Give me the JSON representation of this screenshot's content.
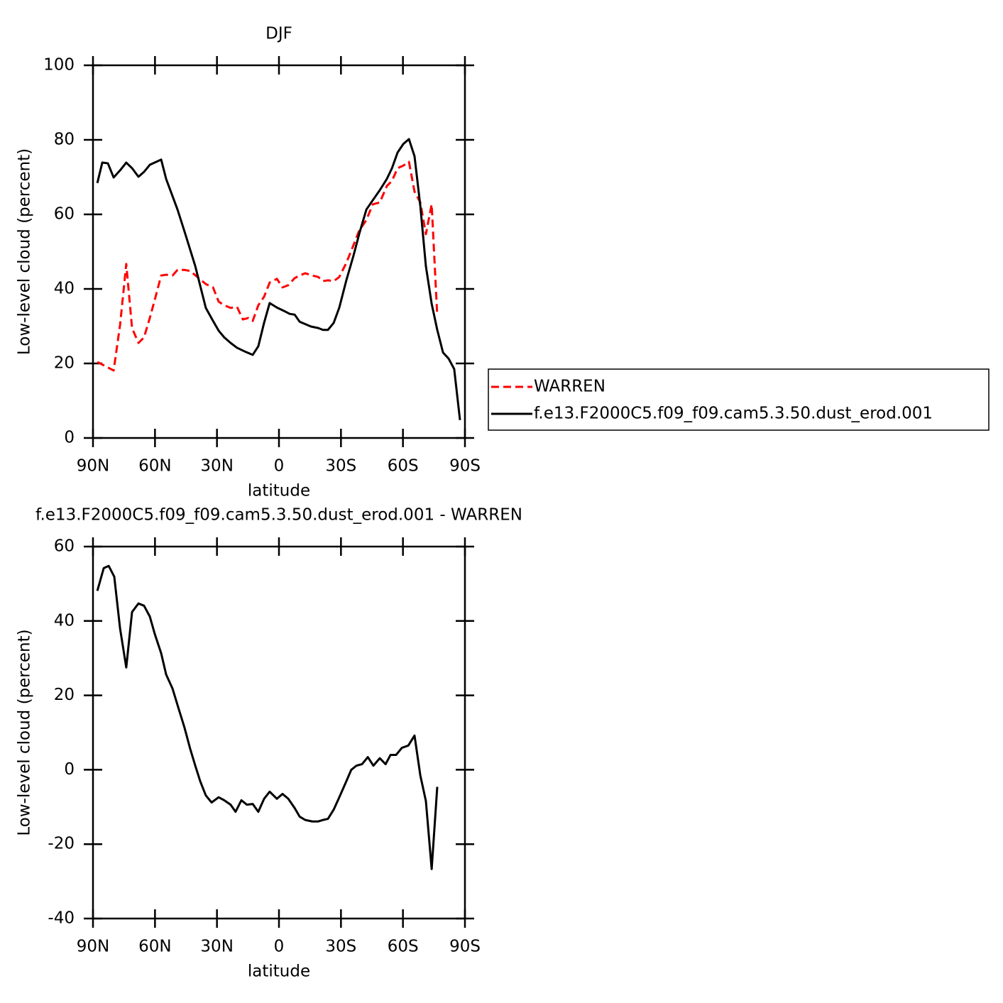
{
  "chart_data": [
    {
      "type": "line",
      "title": "DJF",
      "xlabel": "latitude",
      "ylabel": "Low-level cloud (percent)",
      "xlim": [
        90,
        -90
      ],
      "xticks": [
        {
          "value": 90,
          "label": "90N"
        },
        {
          "value": 60,
          "label": "60N"
        },
        {
          "value": 30,
          "label": "30N"
        },
        0,
        {
          "value": -30,
          "label": "30S"
        },
        {
          "value": -60,
          "label": "60S"
        },
        {
          "value": -90,
          "label": "90S"
        }
      ],
      "ylim": [
        0,
        100
      ],
      "yticks": [
        0,
        20,
        40,
        60,
        80,
        100
      ],
      "legend": "right",
      "series": [
        {
          "name": "WARREN",
          "color": "#ff0000",
          "style": "dashed",
          "x": [
            87.9,
            80.0,
            76.9,
            73.9,
            71.1,
            68.0,
            65.3,
            62.5,
            60.1,
            57.0,
            54.6,
            51.5,
            49.1,
            45.7,
            42.9,
            39.5,
            35.4,
            31.9,
            29.2,
            26.5,
            23.4,
            20.3,
            17.5,
            14.8,
            12.7,
            10.0,
            7.2,
            4.5,
            1.0,
            -1.7,
            -4.5,
            -7.6,
            -10.0,
            -12.7,
            -16.1,
            -19.0,
            -21.3,
            -23.7,
            -26.5,
            -29.2,
            -32.6,
            -36.1,
            -38.8,
            -42.3,
            -45.4,
            -48.8,
            -52.2,
            -54.7,
            -57.4,
            -60.2,
            -62.9,
            -65.6,
            -68.4,
            -71.1,
            -73.9,
            -76.6
          ],
          "values": [
            20.4,
            18.1,
            30.3,
            46.7,
            29.5,
            25.5,
            27.0,
            32.2,
            37.1,
            43.6,
            43.8,
            43.6,
            45.1,
            45.1,
            44.8,
            43.2,
            41.3,
            40.4,
            36.6,
            35.6,
            34.9,
            35.2,
            31.8,
            32.2,
            31.4,
            35.6,
            37.9,
            41.7,
            42.7,
            40.4,
            41.0,
            42.9,
            43.6,
            44.2,
            43.6,
            43.2,
            42.1,
            42.3,
            42.1,
            43.2,
            47.0,
            51.8,
            55.6,
            58.5,
            62.7,
            63.2,
            67.6,
            69.0,
            72.4,
            73.1,
            74.1,
            66.1,
            63.2,
            54.7,
            62.7,
            32.8
          ]
        },
        {
          "name": "f.e13.F2000C5.f09_f09.cam5.3.50.dust_erod.001",
          "color": "#000000",
          "style": "solid",
          "x": [
            87.9,
            85.5,
            82.8,
            80.0,
            76.9,
            73.9,
            71.1,
            68.0,
            65.3,
            62.5,
            57.0,
            54.6,
            49.1,
            45.7,
            40.5,
            35.4,
            31.9,
            29.2,
            26.5,
            23.4,
            20.3,
            16.5,
            12.7,
            10.0,
            7.2,
            4.5,
            1.0,
            -2.4,
            -5.2,
            -7.6,
            -10.0,
            -15.5,
            -19.0,
            -21.3,
            -23.7,
            -26.5,
            -29.2,
            -32.6,
            -36.1,
            -38.8,
            -42.3,
            -45.4,
            -48.8,
            -52.2,
            -54.7,
            -57.4,
            -60.2,
            -62.9,
            -65.6,
            -68.4,
            -71.1,
            -73.9,
            -76.6,
            -79.4,
            -82.1,
            -84.8,
            -87.6
          ],
          "values": [
            68.4,
            73.9,
            73.7,
            69.9,
            71.8,
            73.9,
            72.4,
            70.1,
            71.4,
            73.3,
            74.7,
            69.5,
            61.3,
            55.4,
            46.1,
            34.9,
            31.4,
            28.8,
            27.0,
            25.5,
            24.2,
            23.2,
            22.3,
            24.6,
            30.9,
            36.2,
            35.0,
            34.1,
            33.3,
            33.1,
            31.2,
            29.9,
            29.5,
            29.0,
            29.0,
            30.9,
            35.0,
            42.3,
            49.0,
            54.7,
            61.3,
            63.8,
            66.5,
            69.5,
            72.4,
            76.6,
            78.9,
            80.2,
            75.6,
            62.3,
            46.1,
            36.0,
            29.0,
            22.9,
            21.3,
            18.5,
            4.8
          ]
        }
      ]
    },
    {
      "type": "line",
      "title": "f.e13.F2000C5.f09_f09.cam5.3.50.dust_erod.001 - WARREN",
      "xlabel": "latitude",
      "ylabel": "Low-level cloud (percent)",
      "xlim": [
        90,
        -90
      ],
      "xticks": [
        {
          "value": 90,
          "label": "90N"
        },
        {
          "value": 60,
          "label": "60N"
        },
        {
          "value": 30,
          "label": "30N"
        },
        0,
        {
          "value": -30,
          "label": "30S"
        },
        {
          "value": -60,
          "label": "60S"
        },
        {
          "value": -90,
          "label": "90S"
        }
      ],
      "ylim": [
        -40,
        60
      ],
      "yticks": [
        -40,
        -20,
        0,
        20,
        40,
        60
      ],
      "color": "#000000",
      "x": [
        87.9,
        84.8,
        82.4,
        79.7,
        76.9,
        73.9,
        71.1,
        68.0,
        65.3,
        62.5,
        60.1,
        57.0,
        54.6,
        51.5,
        49.1,
        45.7,
        42.9,
        40.5,
        38.1,
        35.4,
        32.6,
        29.2,
        26.5,
        23.4,
        21.0,
        18.2,
        15.5,
        12.7,
        10.0,
        7.2,
        4.5,
        1.0,
        -1.7,
        -4.5,
        -7.6,
        -10.0,
        -12.7,
        -16.1,
        -19.0,
        -21.3,
        -23.7,
        -26.5,
        -29.2,
        -32.6,
        -35.0,
        -37.5,
        -40.2,
        -43.0,
        -45.7,
        -48.8,
        -51.6,
        -54.0,
        -56.7,
        -59.5,
        -62.6,
        -65.6,
        -68.4,
        -71.1,
        -73.9,
        -76.6
      ],
      "values": [
        48.1,
        54.2,
        54.8,
        51.9,
        38.0,
        27.5,
        42.4,
        44.7,
        44.1,
        41.2,
        36.5,
        31.3,
        25.6,
        21.8,
        17.4,
        11.3,
        5.5,
        1.1,
        -3.1,
        -6.9,
        -8.8,
        -7.4,
        -8.2,
        -9.4,
        -11.3,
        -8.2,
        -9.4,
        -9.2,
        -11.3,
        -7.8,
        -5.9,
        -7.8,
        -6.5,
        -7.8,
        -10.3,
        -12.6,
        -13.5,
        -13.9,
        -13.9,
        -13.5,
        -13.2,
        -10.7,
        -7.4,
        -3.1,
        0,
        1.1,
        1.5,
        3.4,
        1.1,
        3.1,
        1.5,
        4.0,
        4.0,
        5.9,
        6.5,
        9.2,
        -1.5,
        -8.4,
        -26.7,
        -4.6
      ]
    }
  ]
}
